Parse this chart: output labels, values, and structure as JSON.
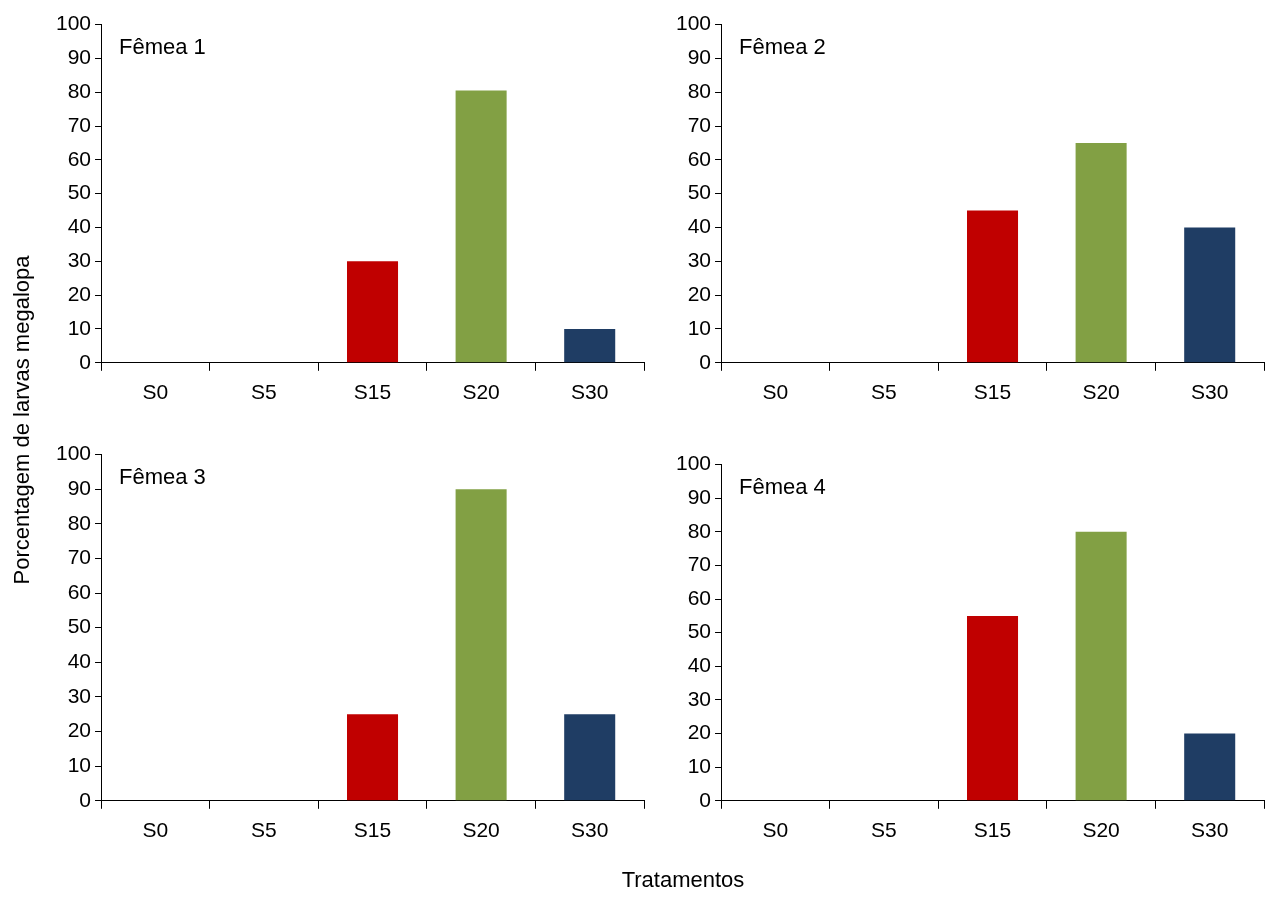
{
  "chart_data": [
    {
      "type": "bar",
      "title": "Fêmea 1",
      "ylabel": "Porcentagem de larvas  megalopa",
      "categories": [
        "S0",
        "S5",
        "S15",
        "S20",
        "S30"
      ],
      "values": [
        0,
        0,
        30,
        80.5,
        10
      ],
      "colors": [
        "#c00000",
        "#c00000",
        "#c00000",
        "#82a044",
        "#1f3d64"
      ],
      "ylim": [
        0,
        100
      ],
      "yticks": [
        0,
        10,
        20,
        30,
        40,
        50,
        60,
        70,
        80,
        90,
        100
      ],
      "grid": false
    },
    {
      "type": "bar",
      "title": "Fêmea 2",
      "categories": [
        "S0",
        "S5",
        "S15",
        "S20",
        "S30"
      ],
      "values": [
        0,
        0,
        45,
        65,
        40
      ],
      "colors": [
        "#c00000",
        "#c00000",
        "#c00000",
        "#82a044",
        "#1f3d64"
      ],
      "ylim": [
        0,
        100
      ],
      "yticks": [
        0,
        10,
        20,
        30,
        40,
        50,
        60,
        70,
        80,
        90,
        100
      ],
      "grid": false
    },
    {
      "type": "bar",
      "title": "Fêmea 3",
      "xlabel": "Tratamentos",
      "categories": [
        "S0",
        "S5",
        "S15",
        "S20",
        "S30"
      ],
      "values": [
        0,
        0,
        25,
        90,
        25
      ],
      "colors": [
        "#c00000",
        "#c00000",
        "#c00000",
        "#82a044",
        "#1f3d64"
      ],
      "ylim": [
        0,
        100
      ],
      "yticks": [
        0,
        10,
        20,
        30,
        40,
        50,
        60,
        70,
        80,
        90,
        100
      ],
      "grid": false
    },
    {
      "type": "bar",
      "title": "Fêmea 4",
      "categories": [
        "S0",
        "S5",
        "S15",
        "S20",
        "S30"
      ],
      "values": [
        0,
        0,
        55,
        80,
        20
      ],
      "colors": [
        "#c00000",
        "#c00000",
        "#c00000",
        "#82a044",
        "#1f3d64"
      ],
      "ylim": [
        0,
        100
      ],
      "yticks": [
        0,
        10,
        20,
        30,
        40,
        50,
        60,
        70,
        80,
        90,
        100
      ],
      "grid": false
    }
  ]
}
